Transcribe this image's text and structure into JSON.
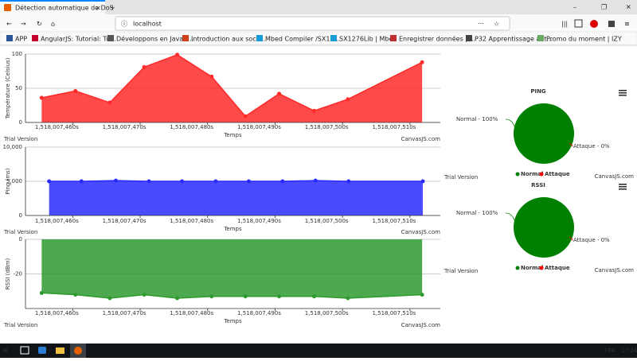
{
  "browser": {
    "tab_title": "Détection automatique de DoS",
    "url": "localhost",
    "bookmarks": [
      "APP",
      "AngularJS: Tutorial: Tu...",
      "Développons en Java -...",
      "Introduction aux sock...",
      "Mbed Compiler /SX12...",
      "SX1276Lib | Mbed",
      "Enregistrer données p...",
      "P32 Apprentissage aut...",
      "Promo du moment | IZY"
    ]
  },
  "chart_data": [
    {
      "type": "area",
      "y_title": "Température (Celsius)",
      "x_title": "Temps",
      "trial": "Trial Version",
      "credit": "CanvasJS.com",
      "x": [
        1518007455.4,
        1518007460.4,
        1518007465.5,
        1518007470.6,
        1518007475.5,
        1518007480.6,
        1518007485.6,
        1518007490.6,
        1518007495.8,
        1518007500.8,
        1518007511.8
      ],
      "values": [
        36,
        46,
        29,
        81,
        99,
        67,
        9,
        42,
        17,
        34,
        88
      ],
      "color": "#ff2a2a",
      "xlim": [
        1518007453,
        1518007514.5
      ],
      "ylim": [
        0,
        100
      ],
      "xticks": [
        {
          "value": 1518007460,
          "label": "1,518,007,460s"
        },
        {
          "value": 1518007470,
          "label": "1,518,007,470s"
        },
        {
          "value": 1518007480,
          "label": "1,518,007,480s"
        },
        {
          "value": 1518007490,
          "label": "1,518,007,490s"
        },
        {
          "value": 1518007500,
          "label": "1,518,007,500s"
        },
        {
          "value": 1518007510,
          "label": "1,518,007,510s"
        }
      ],
      "yticks": [
        0,
        50,
        100
      ],
      "grid": true
    },
    {
      "type": "area",
      "y_title": "Ping (ms)",
      "x_title": "Temps",
      "trial": "Trial Version",
      "credit": "CanvasJS.com",
      "x": [
        1518007456.5,
        1518007461.3,
        1518007466.4,
        1518007471.3,
        1518007476.2,
        1518007481.2,
        1518007486.1,
        1518007491.1,
        1518007496.0,
        1518007500.9,
        1518007511.9
      ],
      "values": [
        5000,
        5000,
        5100,
        5000,
        5000,
        5000,
        5000,
        5000,
        5100,
        5000,
        5000
      ],
      "color": "#2a2aff",
      "xlim": [
        1518007453,
        1518007514.5
      ],
      "ylim": [
        0,
        10000
      ],
      "xticks": [
        {
          "value": 1518007460,
          "label": "1,518,007,460s"
        },
        {
          "value": 1518007470,
          "label": "1,518,007,470s"
        },
        {
          "value": 1518007480,
          "label": "1,518,007,480s"
        },
        {
          "value": 1518007490,
          "label": "1,518,007,490s"
        },
        {
          "value": 1518007500,
          "label": "1,518,007,500s"
        },
        {
          "value": 1518007510,
          "label": "1,518,007,510s"
        }
      ],
      "yticks": [
        0,
        {
          "value": 5000,
          "label": "5,000"
        },
        {
          "value": 10000,
          "label": "10,000"
        }
      ],
      "grid": true
    },
    {
      "type": "area",
      "y_title": "RSSI (dBm)",
      "x_title": "Temps",
      "trial": "Trial Version",
      "credit": "CanvasJS.com",
      "x": [
        1518007455.4,
        1518007460.4,
        1518007465.5,
        1518007470.6,
        1518007475.5,
        1518007480.6,
        1518007485.6,
        1518007490.6,
        1518007495.8,
        1518007500.8,
        1518007511.8
      ],
      "values": [
        -31,
        -32,
        -34,
        -32,
        -34,
        -33,
        -33,
        -33,
        -33,
        -34,
        -32
      ],
      "color": "#2e9a2e",
      "xlim": [
        1518007453,
        1518007514.5
      ],
      "ylim": [
        -40,
        0
      ],
      "xticks": [
        {
          "value": 1518007460,
          "label": "1,518,007,460s"
        },
        {
          "value": 1518007470,
          "label": "1,518,007,470s"
        },
        {
          "value": 1518007480,
          "label": "1,518,007,480s"
        },
        {
          "value": 1518007490,
          "label": "1,518,007,490s"
        },
        {
          "value": 1518007500,
          "label": "1,518,007,500s"
        },
        {
          "value": 1518007510,
          "label": "1,518,007,510s"
        }
      ],
      "yticks": [
        -20,
        0
      ],
      "grid": true
    },
    {
      "type": "pie",
      "title": "PING",
      "trial": "Trial Version",
      "credit": "CanvasJS.com",
      "categories": [
        "Normal",
        "Attaque"
      ],
      "values": [
        100,
        0
      ],
      "value_labels": [
        "Normal - 100%",
        "Attaque - 0%"
      ],
      "colors": [
        "#008000",
        "#ff0000"
      ]
    },
    {
      "type": "pie",
      "title": "RSSI",
      "trial": "Trial Version",
      "credit": "CanvasJS.com",
      "categories": [
        "Normal",
        "Attaque"
      ],
      "values": [
        100,
        0
      ],
      "value_labels": [
        "Normal - 100%",
        "Attaque - 0%"
      ],
      "colors": [
        "#008000",
        "#ff0000"
      ]
    }
  ],
  "taskbar": {
    "language": "FRA",
    "time": "17:24"
  }
}
